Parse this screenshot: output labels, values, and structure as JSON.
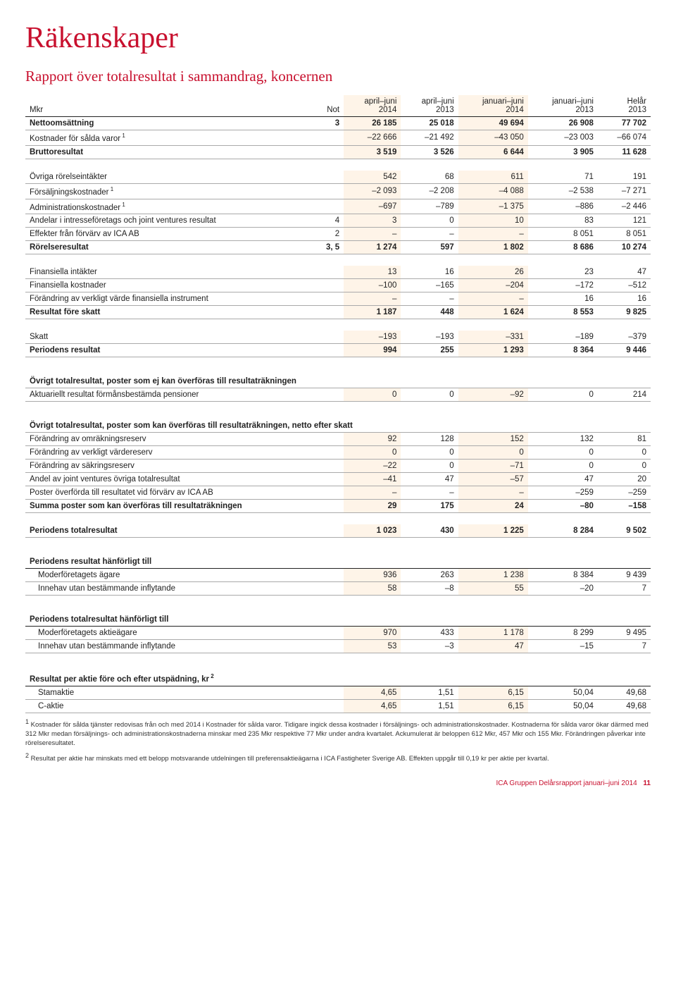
{
  "title": "Räkenskaper",
  "subtitle": "Rapport över totalresultat i sammandrag, koncernen",
  "columns": {
    "label": "Mkr",
    "note": "Not",
    "c1": "april–juni\n2014",
    "c2": "april–juni\n2013",
    "c3": "januari–juni\n2014",
    "c4": "januari–juni\n2013",
    "c5": "Helår\n2013"
  },
  "rows": [
    {
      "label": "Nettoomsättning",
      "note": "3",
      "v": [
        "26 185",
        "25 018",
        "49 694",
        "26 908",
        "77 702"
      ],
      "bold": true
    },
    {
      "label": "Kostnader för sålda varor",
      "sup": "1",
      "v": [
        "–22 666",
        "–21 492",
        "–43 050",
        "–23 003",
        "–66 074"
      ]
    },
    {
      "label": "Bruttoresultat",
      "v": [
        "3 519",
        "3 526",
        "6 644",
        "3 905",
        "11 628"
      ],
      "bold": true
    },
    {
      "spacer": true
    },
    {
      "label": "Övriga rörelseintäkter",
      "v": [
        "542",
        "68",
        "611",
        "71",
        "191"
      ]
    },
    {
      "label": "Försäljningskostnader",
      "sup": "1",
      "v": [
        "–2 093",
        "–2 208",
        "–4 088",
        "–2 538",
        "–7 271"
      ]
    },
    {
      "label": "Administrationskostnader",
      "sup": "1",
      "v": [
        "–697",
        "–789",
        "–1 375",
        "–886",
        "–2 446"
      ]
    },
    {
      "label": "Andelar i intresseföretags och joint ventures resultat",
      "note": "4",
      "v": [
        "3",
        "0",
        "10",
        "83",
        "121"
      ]
    },
    {
      "label": "Effekter från förvärv av ICA AB",
      "note": "2",
      "v": [
        "–",
        "–",
        "–",
        "8 051",
        "8 051"
      ]
    },
    {
      "label": "Rörelseresultat",
      "note": "3, 5",
      "v": [
        "1 274",
        "597",
        "1 802",
        "8 686",
        "10 274"
      ],
      "bold": true
    },
    {
      "spacer": true
    },
    {
      "label": "Finansiella intäkter",
      "v": [
        "13",
        "16",
        "26",
        "23",
        "47"
      ]
    },
    {
      "label": "Finansiella kostnader",
      "v": [
        "–100",
        "–165",
        "–204",
        "–172",
        "–512"
      ]
    },
    {
      "label": "Förändring av verkligt värde finansiella instrument",
      "v": [
        "–",
        "–",
        "–",
        "16",
        "16"
      ]
    },
    {
      "label": "Resultat före skatt",
      "v": [
        "1 187",
        "448",
        "1 624",
        "8 553",
        "9 825"
      ],
      "bold": true
    },
    {
      "spacer": true
    },
    {
      "label": "Skatt",
      "v": [
        "–193",
        "–193",
        "–331",
        "–189",
        "–379"
      ]
    },
    {
      "label": "Periodens resultat",
      "v": [
        "994",
        "255",
        "1 293",
        "8 364",
        "9 446"
      ],
      "bold": true
    },
    {
      "spacer": true
    },
    {
      "label": "Övrigt totalresultat, poster som ej kan överföras till resultaträkningen",
      "section": true,
      "nb": true
    },
    {
      "label": "Aktuariellt resultat förmånsbestämda pensioner",
      "v": [
        "0",
        "0",
        "–92",
        "0",
        "214"
      ]
    },
    {
      "spacer": true
    },
    {
      "label": "Övrigt totalresultat, poster som kan överföras till resultaträkningen, netto efter skatt",
      "section": true,
      "nb": true
    },
    {
      "label": "Förändring av omräkningsreserv",
      "v": [
        "92",
        "128",
        "152",
        "132",
        "81"
      ]
    },
    {
      "label": "Förändring av verkligt värdereserv",
      "v": [
        "0",
        "0",
        "0",
        "0",
        "0"
      ]
    },
    {
      "label": "Förändring av säkringsreserv",
      "v": [
        "–22",
        "0",
        "–71",
        "0",
        "0"
      ]
    },
    {
      "label": "Andel av joint ventures övriga totalresultat",
      "v": [
        "–41",
        "47",
        "–57",
        "47",
        "20"
      ]
    },
    {
      "label": "Poster överförda till resultatet vid förvärv av ICA AB",
      "v": [
        "–",
        "–",
        "–",
        "–259",
        "–259"
      ]
    },
    {
      "label": "Summa poster som kan överföras till resultaträkningen",
      "v": [
        "29",
        "175",
        "24",
        "–80",
        "–158"
      ],
      "bold": true
    },
    {
      "spacer": true
    },
    {
      "label": "Periodens totalresultat",
      "v": [
        "1 023",
        "430",
        "1 225",
        "8 284",
        "9 502"
      ],
      "bold": true
    },
    {
      "spacer": true
    },
    {
      "label": "Periodens resultat hänförligt till",
      "section": true
    },
    {
      "label": "Moderföretagets ägare",
      "indent": true,
      "v": [
        "936",
        "263",
        "1 238",
        "8 384",
        "9 439"
      ]
    },
    {
      "label": "Innehav utan bestämmande inflytande",
      "indent": true,
      "v": [
        "58",
        "–8",
        "55",
        "–20",
        "7"
      ]
    },
    {
      "spacer": true
    },
    {
      "label": "Periodens totalresultat hänförligt till",
      "section": true
    },
    {
      "label": "Moderföretagets aktieägare",
      "indent": true,
      "v": [
        "970",
        "433",
        "1 178",
        "8 299",
        "9 495"
      ]
    },
    {
      "label": "Innehav utan bestämmande inflytande",
      "indent": true,
      "v": [
        "53",
        "–3",
        "47",
        "–15",
        "7"
      ]
    },
    {
      "spacer": true
    },
    {
      "label": "Resultat per aktie före och efter utspädning, kr",
      "sup": "2",
      "section": true
    },
    {
      "label": "Stamaktie",
      "indent": true,
      "v": [
        "4,65",
        "1,51",
        "6,15",
        "50,04",
        "49,68"
      ]
    },
    {
      "label": "C-aktie",
      "indent": true,
      "v": [
        "4,65",
        "1,51",
        "6,15",
        "50,04",
        "49,68"
      ]
    }
  ],
  "footnotes": [
    "1 Kostnader för sålda tjänster redovisas från och med 2014 i Kostnader för sålda varor. Tidigare ingick dessa kostnader i försäljnings- och administrationskostnader. Kostnaderna för sålda varor ökar därmed med 312 Mkr medan försäljnings- och administrationskostnaderna minskar med 235 Mkr respektive 77 Mkr under andra kvartalet. Ackumulerat är beloppen 612 Mkr, 457 Mkr och 155 Mkr. Förändringen påverkar inte rörelseresultatet.",
    "2 Resultat per aktie har minskats med ett belopp motsvarande utdelningen till preferensaktieägarna i ICA Fastigheter Sverige AB. Effekten uppgår till 0,19 kr per aktie per kvartal."
  ],
  "footer": "ICA Gruppen Delårsrapport januari–juni 2014",
  "pagenum": "11",
  "hl_color": "#fef4e8"
}
